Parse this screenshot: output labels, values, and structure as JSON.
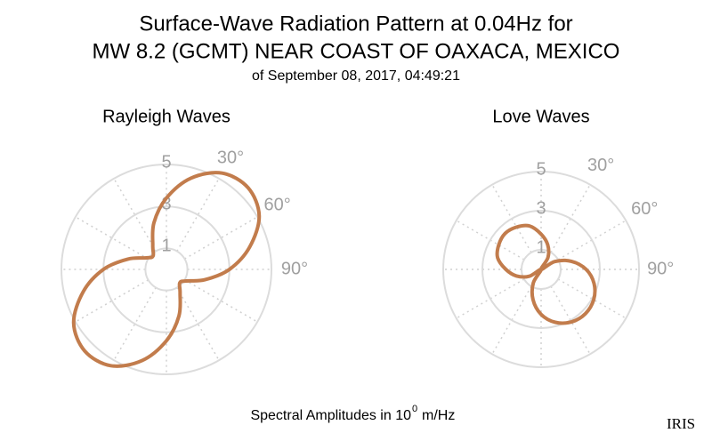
{
  "title": [
    "Surface-Wave Radiation Pattern at 0.04Hz for",
    "MW 8.2 (GCMT) NEAR COAST OF OAXACA, MEXICO"
  ],
  "subtitle": "of September 08, 2017, 04:49:21",
  "footer": {
    "text": "Spectral Amplitudes in 10",
    "exponent": "0",
    "unit": "m/Hz"
  },
  "logo": "IRIS",
  "chart_data": [
    {
      "type": "polar",
      "title": "Rayleigh Waves",
      "theta_zero": "N",
      "theta_direction": "clockwise",
      "rlim": [
        0,
        5
      ],
      "rticks": [
        1,
        3,
        5
      ],
      "thetaticks": [
        {
          "value": 30,
          "label": "30°"
        },
        {
          "value": 60,
          "label": "60°"
        },
        {
          "value": 90,
          "label": "90°"
        }
      ],
      "grid": true,
      "theta": [
        0,
        15,
        30,
        45,
        60,
        75,
        90,
        105,
        120,
        135,
        150,
        165,
        180,
        195,
        210,
        225,
        240,
        255,
        270,
        285,
        300,
        315,
        330,
        345
      ],
      "series": [
        {
          "color": "#c27c4c",
          "values": [
            3.4,
            4.5,
            5.3,
            5.5,
            5.1,
            4.1,
            3.0,
            1.9,
            1.1,
            0.9,
            1.3,
            2.3,
            3.4,
            4.5,
            5.3,
            5.5,
            5.1,
            4.1,
            3.0,
            1.9,
            1.1,
            0.9,
            1.3,
            2.3
          ]
        }
      ]
    },
    {
      "type": "polar",
      "title": "Love Waves",
      "theta_zero": "N",
      "theta_direction": "clockwise",
      "rlim": [
        0,
        5
      ],
      "rticks": [
        1,
        3,
        5
      ],
      "thetaticks": [
        {
          "value": 30,
          "label": "30°"
        },
        {
          "value": 60,
          "label": "60°"
        },
        {
          "value": 90,
          "label": "90°"
        }
      ],
      "grid": true,
      "theta": [
        0,
        15,
        30,
        45,
        60,
        75,
        90,
        105,
        120,
        135,
        150,
        165,
        180,
        195,
        210,
        225,
        240,
        255,
        270,
        285,
        300,
        315,
        330,
        345
      ],
      "series": [
        {
          "color": "#c27c4c",
          "values": [
            1.8,
            1.3,
            0.7,
            0,
            0.8,
            1.6,
            2.3,
            2.8,
            3.1,
            3.2,
            3.1,
            2.8,
            2.3,
            1.6,
            0.8,
            0,
            0.7,
            1.3,
            1.8,
            2.3,
            2.5,
            2.6,
            2.5,
            2.3
          ]
        }
      ]
    }
  ]
}
